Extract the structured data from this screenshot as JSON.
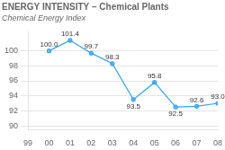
{
  "chart_data": {
    "type": "line",
    "title": "ENERGY INTENSITY – Chemical Plants",
    "subtitle": "Chemical Energy Index",
    "categories": [
      "99",
      "00",
      "01",
      "02",
      "03",
      "04",
      "05",
      "06",
      "07",
      "08"
    ],
    "values": [
      null,
      100.0,
      101.4,
      99.7,
      98.3,
      93.5,
      95.8,
      92.5,
      92.6,
      93.0
    ],
    "value_labels": [
      null,
      "100.0",
      "101.4",
      "99.7",
      "98.3",
      "93.5",
      "95.8",
      "92.5",
      "92.6",
      "93.0"
    ],
    "ylim": [
      89.5,
      102.5
    ],
    "yticks": [
      90,
      92,
      94,
      96,
      98,
      100
    ],
    "grid": true,
    "data_labels": true,
    "marker": "circle"
  }
}
